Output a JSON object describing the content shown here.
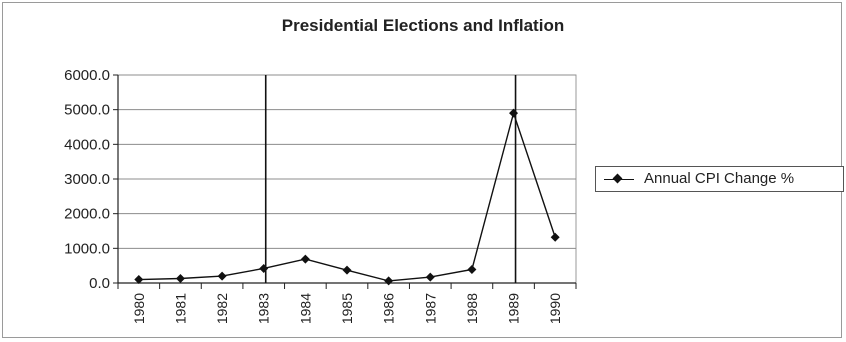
{
  "chart_data": {
    "type": "line",
    "title": "Presidential Elections and Inflation",
    "xlabel": "",
    "ylabel": "",
    "categories": [
      "1980",
      "1981",
      "1982",
      "1983",
      "1984",
      "1985",
      "1986",
      "1987",
      "1988",
      "1989",
      "1990"
    ],
    "series": [
      {
        "name": "Annual CPI Change %",
        "values": [
          100,
          130,
          200,
          420,
          690,
          370,
          60,
          170,
          390,
          4900,
          1320
        ],
        "color": "#111111"
      }
    ],
    "ylim": [
      0,
      6000
    ],
    "yticks": [
      "6000.0",
      "5000.0",
      "4000.0",
      "3000.0",
      "2000.0",
      "1000.0",
      "0.0"
    ],
    "election_markers": [
      "1983",
      "1989"
    ],
    "grid": "horizontal",
    "legend_position": "right"
  }
}
